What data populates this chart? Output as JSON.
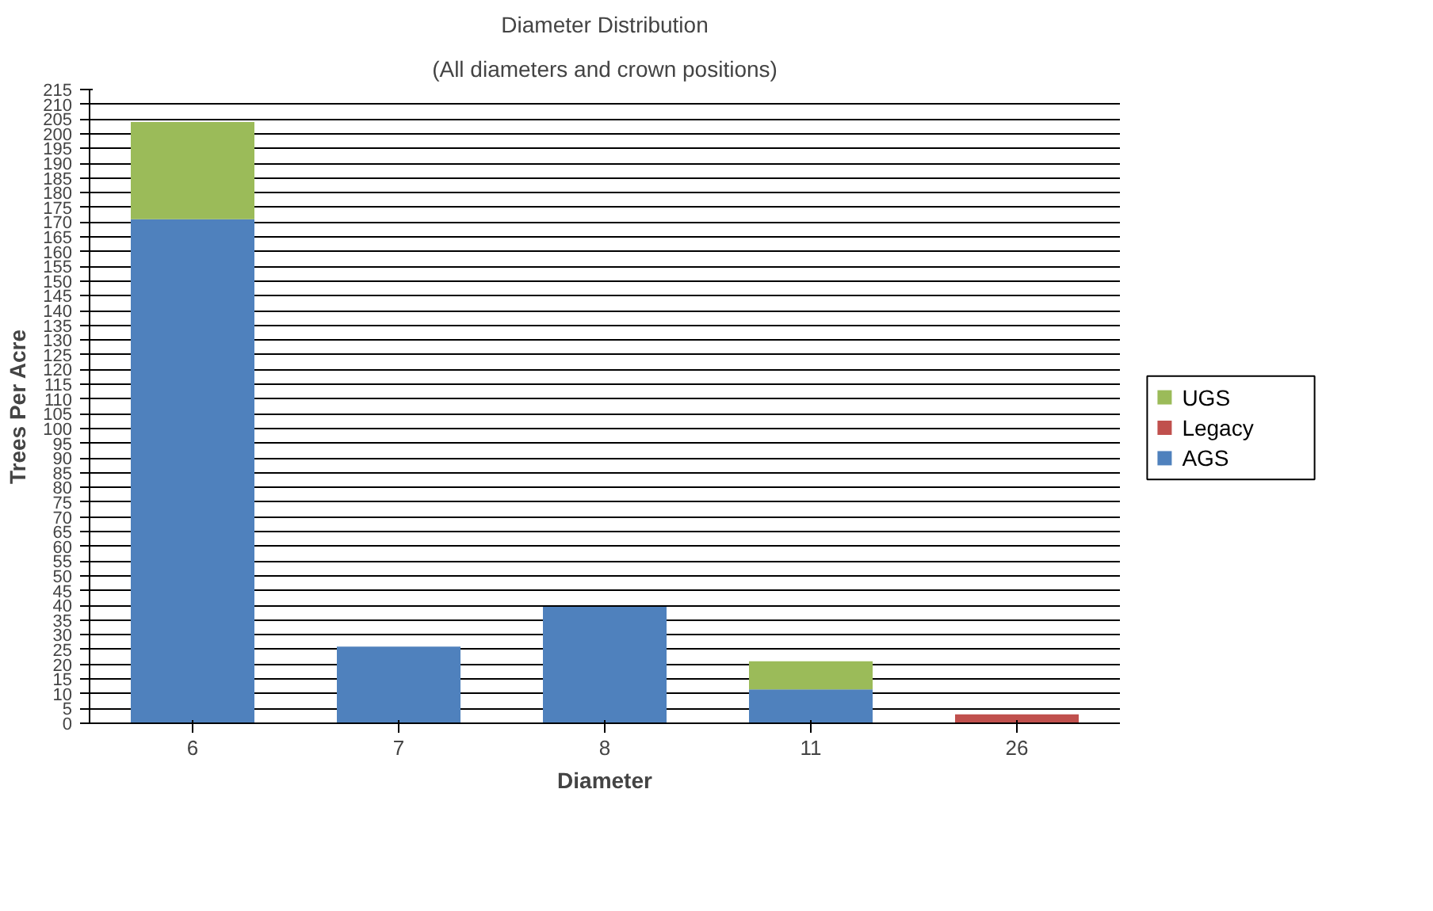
{
  "chart_data": {
    "type": "bar",
    "title": "Diameter Distribution",
    "subtitle": "(All diameters and crown positions)",
    "xlabel": "Diameter",
    "ylabel": "Trees Per Acre",
    "categories": [
      "6",
      "7",
      "8",
      "11",
      "26"
    ],
    "stacked": true,
    "series": [
      {
        "name": "AGS",
        "color": "#4f81bd",
        "values": [
          171,
          26,
          39.5,
          11.5,
          0
        ]
      },
      {
        "name": "Legacy",
        "color": "#c0504d",
        "values": [
          0,
          0,
          0,
          0,
          3
        ]
      },
      {
        "name": "UGS",
        "color": "#9bbb59",
        "values": [
          33,
          0,
          0,
          9.5,
          0
        ]
      }
    ],
    "ylim": [
      0,
      215
    ],
    "yticks": [
      0,
      5,
      10,
      15,
      20,
      25,
      30,
      35,
      40,
      45,
      50,
      55,
      60,
      65,
      70,
      75,
      80,
      85,
      90,
      95,
      100,
      105,
      110,
      115,
      120,
      125,
      130,
      135,
      140,
      145,
      150,
      155,
      160,
      165,
      170,
      175,
      180,
      185,
      190,
      195,
      200,
      205,
      210,
      215
    ],
    "grid": "y",
    "legend": "right"
  }
}
